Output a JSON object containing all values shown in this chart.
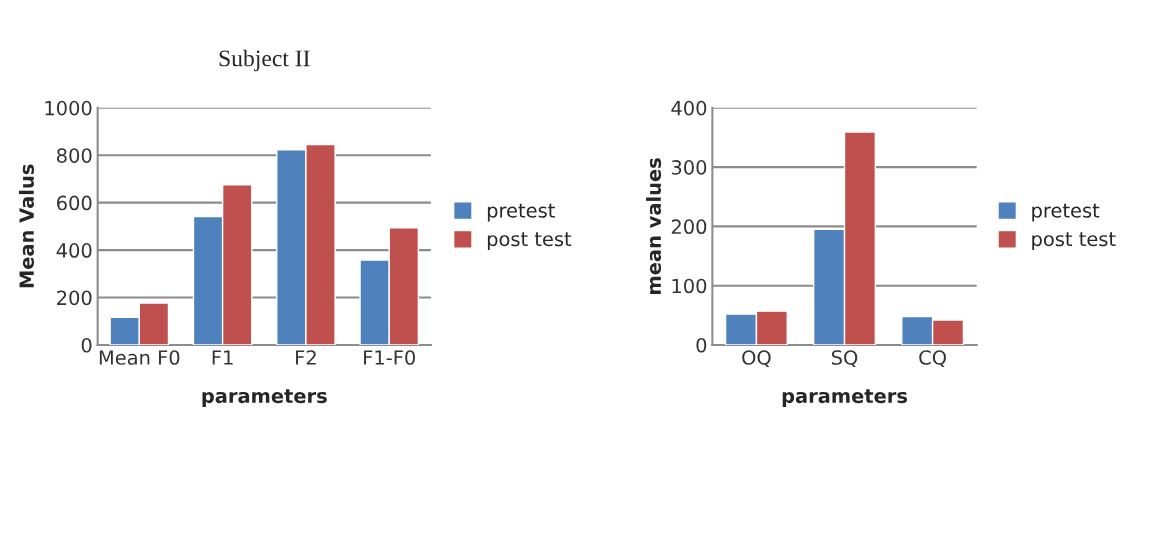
{
  "chart_data": [
    {
      "type": "bar",
      "title": "Subject II",
      "xlabel": "parameters",
      "ylabel": "Mean Valus",
      "categories": [
        "Mean F0",
        "F1",
        "F2",
        "F1-F0"
      ],
      "series": [
        {
          "name": "pretest",
          "color": "#4f81bd",
          "values": [
            117,
            541,
            823,
            358
          ]
        },
        {
          "name": "post test",
          "color": "#c0504d",
          "values": [
            177,
            675,
            845,
            494
          ]
        }
      ],
      "ylim": [
        0,
        1000
      ],
      "yticks": [
        0,
        200,
        400,
        600,
        800,
        1000
      ],
      "grid": "y",
      "legend": "right"
    },
    {
      "type": "bar",
      "xlabel": "parameters",
      "ylabel": "mean values",
      "categories": [
        "OQ",
        "SQ",
        "CQ"
      ],
      "series": [
        {
          "name": "pretest",
          "color": "#4f81bd",
          "values": [
            52,
            195,
            48
          ]
        },
        {
          "name": "post test",
          "color": "#c0504d",
          "values": [
            57,
            359,
            42
          ]
        }
      ],
      "ylim": [
        0,
        400
      ],
      "yticks": [
        0,
        100,
        200,
        300,
        400
      ],
      "grid": "y",
      "legend": "right"
    }
  ]
}
